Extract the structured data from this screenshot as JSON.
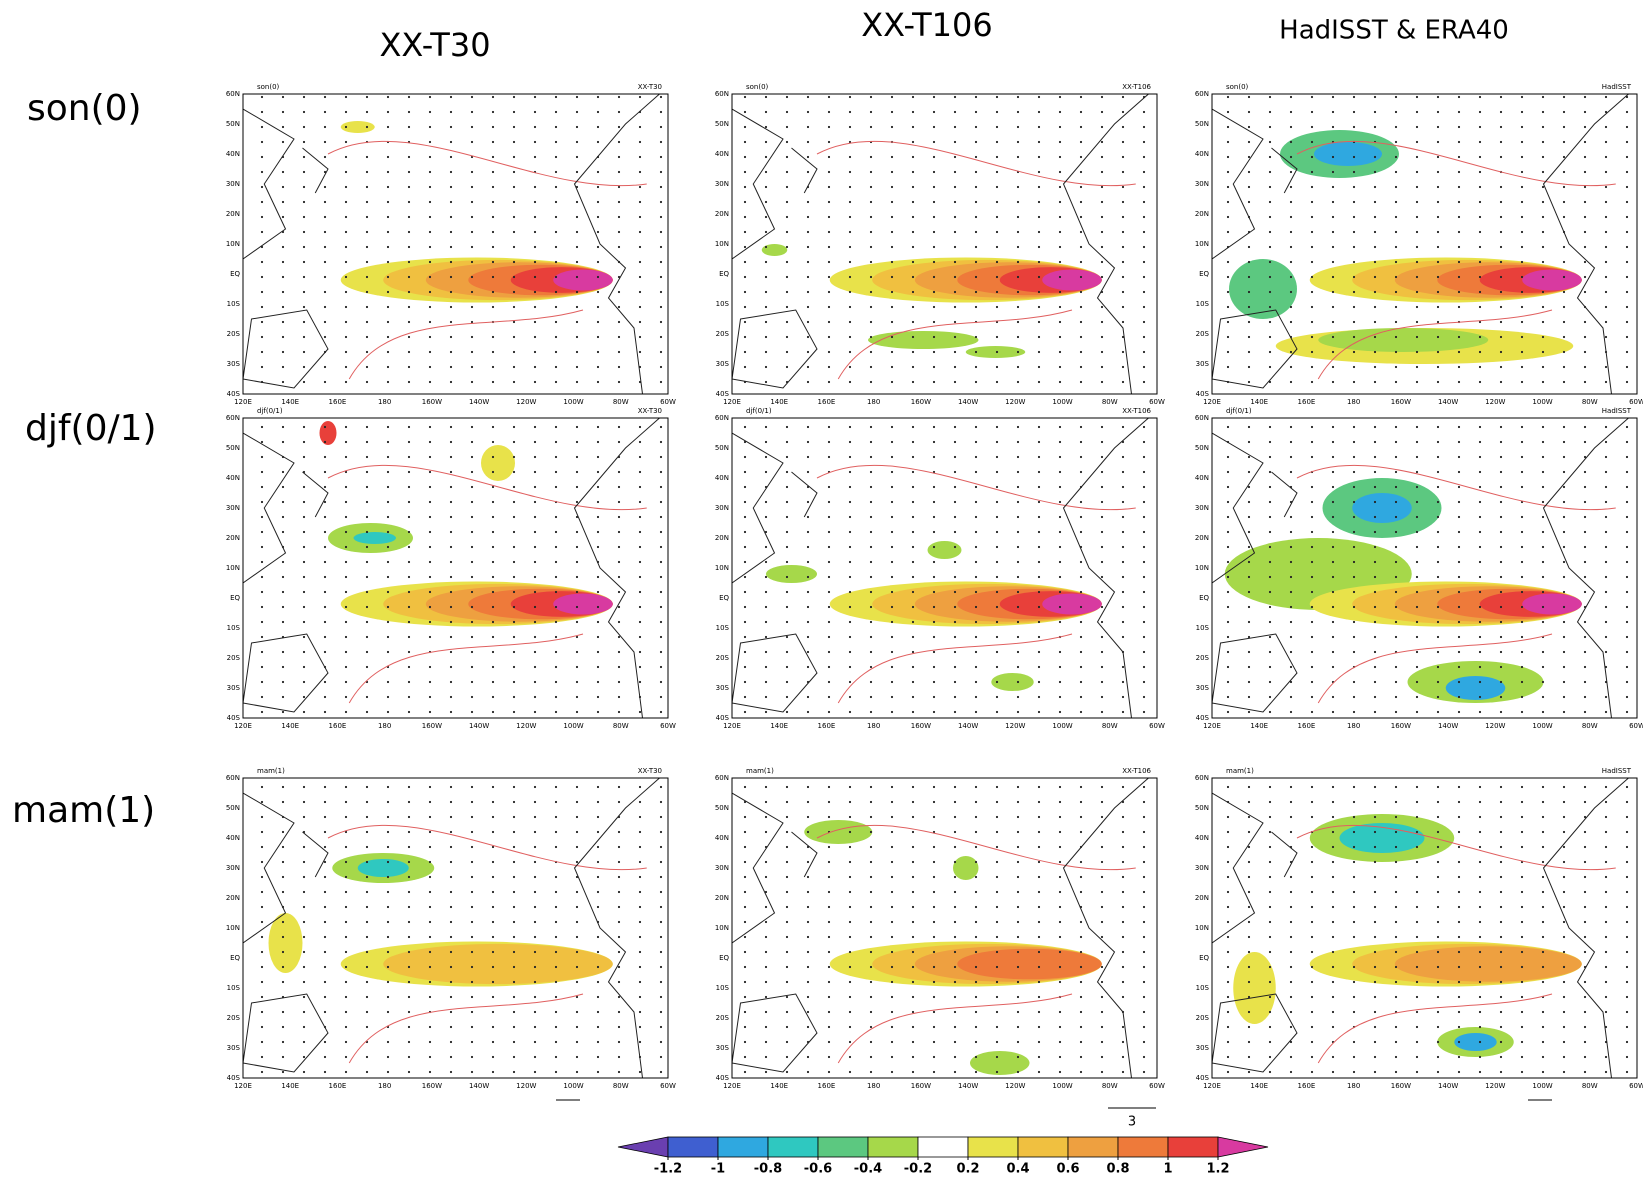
{
  "columns": [
    {
      "title": "XX-T30",
      "tag": "XX-T30"
    },
    {
      "title": "XX-T106",
      "tag": "XX-T106"
    },
    {
      "title": "HadISST & ERA40",
      "tag": "HadISST"
    }
  ],
  "rows": [
    {
      "label": "son(0)"
    },
    {
      "label": "djf(0/1)"
    },
    {
      "label": "mam(1)"
    }
  ],
  "lat_labels": [
    "60N",
    "50N",
    "40N",
    "30N",
    "20N",
    "10N",
    "EQ",
    "10S",
    "20S",
    "30S",
    "40S"
  ],
  "lon_labels": [
    "120E",
    "140E",
    "160E",
    "180",
    "160W",
    "140W",
    "120W",
    "100W",
    "80W",
    "60W"
  ],
  "reference_arrow_label": "3",
  "colorbar": {
    "ticks": [
      -1.2,
      -1,
      -0.8,
      -0.6,
      -0.4,
      -0.2,
      0.2,
      0.4,
      0.6,
      0.8,
      1,
      1.2
    ],
    "colors": [
      "#6a3fb0",
      "#3f5fd0",
      "#2fa8e0",
      "#2fc8c0",
      "#5cc880",
      "#a6d84a",
      "#ffffff",
      "#e8e24a",
      "#f0c040",
      "#eea040",
      "#ee7a3a",
      "#e8403a",
      "#d83aa0"
    ]
  }
}
